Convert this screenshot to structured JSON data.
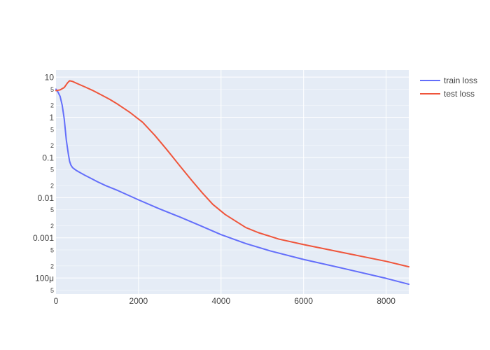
{
  "chart_data": {
    "type": "line",
    "title": "",
    "xlabel": "",
    "ylabel": "",
    "xlim": [
      0,
      8550
    ],
    "ylim": [
      4e-05,
      15
    ],
    "yscale": "log",
    "grid": true,
    "legend_position": "top-right",
    "x_ticks": [
      {
        "value": 0,
        "label": "0"
      },
      {
        "value": 2000,
        "label": "2000"
      },
      {
        "value": 4000,
        "label": "4000"
      },
      {
        "value": 6000,
        "label": "6000"
      },
      {
        "value": 8000,
        "label": "8000"
      }
    ],
    "y_major_ticks": [
      {
        "value": 10,
        "label": "10"
      },
      {
        "value": 1,
        "label": "1"
      },
      {
        "value": 0.1,
        "label": "0.1"
      },
      {
        "value": 0.01,
        "label": "0.01"
      },
      {
        "value": 0.001,
        "label": "0.001"
      },
      {
        "value": 0.0001,
        "label": "100μ"
      }
    ],
    "y_minor_ticks": [
      {
        "value": 5,
        "label": "5"
      },
      {
        "value": 2,
        "label": "2"
      },
      {
        "value": 0.5,
        "label": "5"
      },
      {
        "value": 0.2,
        "label": "2"
      },
      {
        "value": 0.05,
        "label": "5"
      },
      {
        "value": 0.02,
        "label": "2"
      },
      {
        "value": 0.005,
        "label": "5"
      },
      {
        "value": 0.002,
        "label": "2"
      },
      {
        "value": 0.0005,
        "label": "5"
      },
      {
        "value": 0.0002,
        "label": "2"
      },
      {
        "value": 5e-05,
        "label": "5"
      }
    ],
    "series": [
      {
        "name": "train loss",
        "color": "#636efa",
        "x": [
          0,
          50,
          100,
          150,
          200,
          250,
          300,
          330,
          360,
          400,
          450,
          500,
          600,
          700,
          800,
          1000,
          1200,
          1500,
          2000,
          2500,
          3000,
          3500,
          4000,
          4600,
          5200,
          6000,
          7000,
          8000,
          8550
        ],
        "y": [
          5,
          4.2,
          3.3,
          2.0,
          0.9,
          0.27,
          0.12,
          0.08,
          0.065,
          0.056,
          0.051,
          0.047,
          0.041,
          0.036,
          0.032,
          0.025,
          0.02,
          0.015,
          0.0088,
          0.0053,
          0.0033,
          0.002,
          0.0012,
          0.00072,
          0.00047,
          0.00029,
          0.00017,
          9.8e-05,
          7e-05
        ]
      },
      {
        "name": "test loss",
        "color": "#ef553b",
        "x": [
          0,
          100,
          200,
          280,
          330,
          400,
          500,
          700,
          900,
          1100,
          1300,
          1500,
          1800,
          2100,
          2400,
          2700,
          3000,
          3300,
          3550,
          3800,
          4100,
          4600,
          4900,
          5400,
          6000,
          7000,
          8000,
          8550
        ],
        "y": [
          4.6,
          4.8,
          5.5,
          7.2,
          8.1,
          7.8,
          7.0,
          5.7,
          4.6,
          3.6,
          2.8,
          2.1,
          1.3,
          0.75,
          0.35,
          0.15,
          0.062,
          0.026,
          0.013,
          0.0068,
          0.0038,
          0.0018,
          0.00135,
          0.00093,
          0.00068,
          0.00042,
          0.00026,
          0.00019
        ]
      }
    ]
  }
}
